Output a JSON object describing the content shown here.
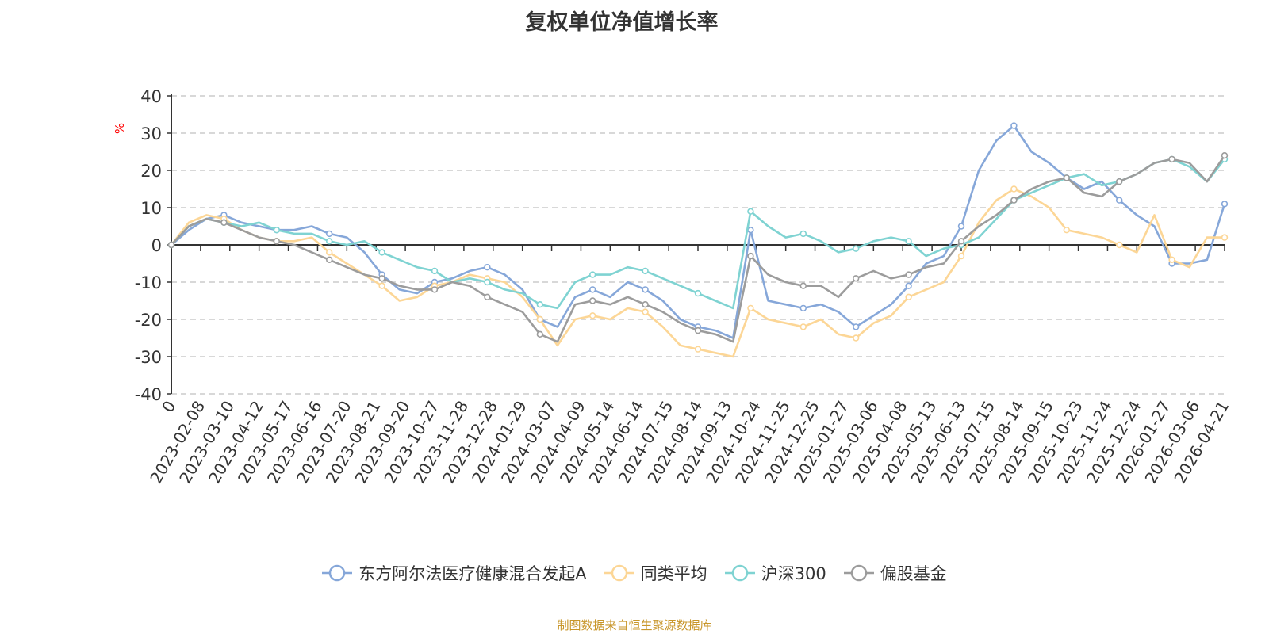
{
  "colors": {
    "fund": "#86a7d9",
    "peer": "#fcd696",
    "csi300": "#7fd3d2",
    "equity": "#9c9c9c"
  },
  "footer": {
    "source": "制图数据来自恒生聚源数据库"
  },
  "chart_data": {
    "type": "line",
    "title": "复权单位净值增长率",
    "ylabel": "%",
    "ylim": [
      -40,
      40
    ],
    "yticks": [
      -40,
      -30,
      -20,
      -10,
      0,
      10,
      20,
      30,
      40
    ],
    "xlabel": "",
    "x_tick_labels": [
      "0",
      "2023-02-08",
      "2023-03-10",
      "2023-04-12",
      "2023-05-17",
      "2023-06-16",
      "2023-07-20",
      "2023-08-21",
      "2023-09-20",
      "2023-10-27",
      "2023-11-28",
      "2023-12-28",
      "2024-01-29",
      "2024-03-07",
      "2024-04-09",
      "2024-05-14",
      "2024-06-14",
      "2024-07-15",
      "2024-08-14",
      "2024-09-13",
      "2024-10-24",
      "2024-11-25",
      "2024-12-25",
      "2025-01-27",
      "2025-03-06",
      "2025-04-08",
      "2025-05-13",
      "2025-06-13",
      "2025-07-15",
      "2025-08-14",
      "2025-09-15",
      "2025-10-23",
      "2025-11-24",
      "2025-12-24",
      "2026-01-27",
      "2026-03-06",
      "2026-04-21"
    ],
    "grid": "dashed horizontal",
    "legend": "bottom-center",
    "series": [
      {
        "name": "东方阿尔法医疗健康混合发起A",
        "color_key": "fund",
        "values": [
          0,
          4,
          7,
          8,
          6,
          5,
          4,
          4,
          5,
          3,
          2,
          -2,
          -8,
          -12,
          -13,
          -10,
          -9,
          -7,
          -6,
          -8,
          -12,
          -20,
          -22,
          -14,
          -12,
          -14,
          -10,
          -12,
          -15,
          -20,
          -22,
          -23,
          -25,
          4,
          -15,
          -16,
          -17,
          -16,
          -18,
          -22,
          -19,
          -16,
          -11,
          -5,
          -3,
          5,
          20,
          28,
          32,
          25,
          22,
          18,
          15,
          17,
          12,
          8,
          5,
          -5,
          -5,
          -4,
          11
        ]
      },
      {
        "name": "同类平均",
        "color_key": "peer",
        "values": [
          0,
          6,
          8,
          7,
          4,
          2,
          1,
          1,
          2,
          -2,
          -5,
          -8,
          -11,
          -15,
          -14,
          -11,
          -10,
          -8,
          -9,
          -10,
          -14,
          -20,
          -27,
          -20,
          -19,
          -20,
          -17,
          -18,
          -22,
          -27,
          -28,
          -29,
          -30,
          -17,
          -20,
          -21,
          -22,
          -20,
          -24,
          -25,
          -21,
          -19,
          -14,
          -12,
          -10,
          -3,
          6,
          12,
          15,
          13,
          10,
          4,
          3,
          2,
          0,
          -2,
          8,
          -4,
          -6,
          2,
          2
        ]
      },
      {
        "name": "沪深300",
        "color_key": "csi300",
        "values": [
          0,
          5,
          7,
          6,
          5,
          6,
          4,
          3,
          3,
          1,
          0,
          1,
          -2,
          -4,
          -6,
          -7,
          -10,
          -9,
          -10,
          -12,
          -13,
          -16,
          -17,
          -10,
          -8,
          -8,
          -6,
          -7,
          -9,
          -11,
          -13,
          -15,
          -17,
          9,
          5,
          2,
          3,
          1,
          -2,
          -1,
          1,
          2,
          1,
          -3,
          -1,
          0,
          2,
          7,
          12,
          14,
          16,
          18,
          19,
          16,
          17,
          19,
          22,
          23,
          21,
          17,
          23
        ]
      },
      {
        "name": "偏股基金",
        "color_key": "equity",
        "values": [
          0,
          5,
          7,
          6,
          4,
          2,
          1,
          0,
          -2,
          -4,
          -6,
          -8,
          -9,
          -11,
          -12,
          -12,
          -10,
          -11,
          -14,
          -16,
          -18,
          -24,
          -26,
          -16,
          -15,
          -16,
          -14,
          -16,
          -18,
          -21,
          -23,
          -24,
          -26,
          -3,
          -8,
          -10,
          -11,
          -11,
          -14,
          -9,
          -7,
          -9,
          -8,
          -6,
          -5,
          1,
          5,
          8,
          12,
          15,
          17,
          18,
          14,
          13,
          17,
          19,
          22,
          23,
          22,
          17,
          24
        ]
      }
    ]
  }
}
